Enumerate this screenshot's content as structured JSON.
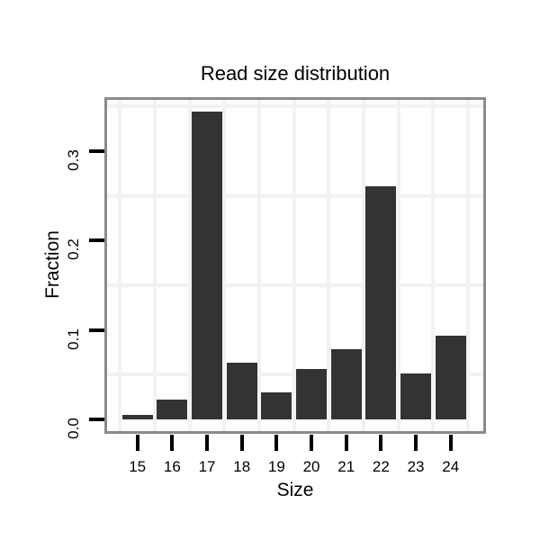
{
  "title": "Read size distribution",
  "chart_data": {
    "type": "bar",
    "title": "Read size distribution",
    "xlabel": "Size",
    "ylabel": "Fraction",
    "categories": [
      "15",
      "16",
      "17",
      "18",
      "19",
      "20",
      "21",
      "22",
      "23",
      "24"
    ],
    "values": [
      0.005,
      0.022,
      0.344,
      0.063,
      0.03,
      0.056,
      0.078,
      0.261,
      0.051,
      0.094
    ],
    "y_ticks": [
      0.0,
      0.1,
      0.2,
      0.3
    ],
    "y_tick_labels": [
      "0.0",
      "0.1",
      "0.2",
      "0.3"
    ],
    "minor_gridlines_y": [
      0.05,
      0.15,
      0.25,
      0.35
    ],
    "ylim": [
      -0.014,
      0.357
    ],
    "grid": "minor-only, light gray on white panel",
    "legend": "none",
    "colors": {
      "bar_fill": "#333333",
      "panel_border": "#8a8a8a",
      "gridline": "#f2f2f2",
      "tick": "#000000",
      "text": "#000000",
      "background": "#ffffff"
    }
  }
}
